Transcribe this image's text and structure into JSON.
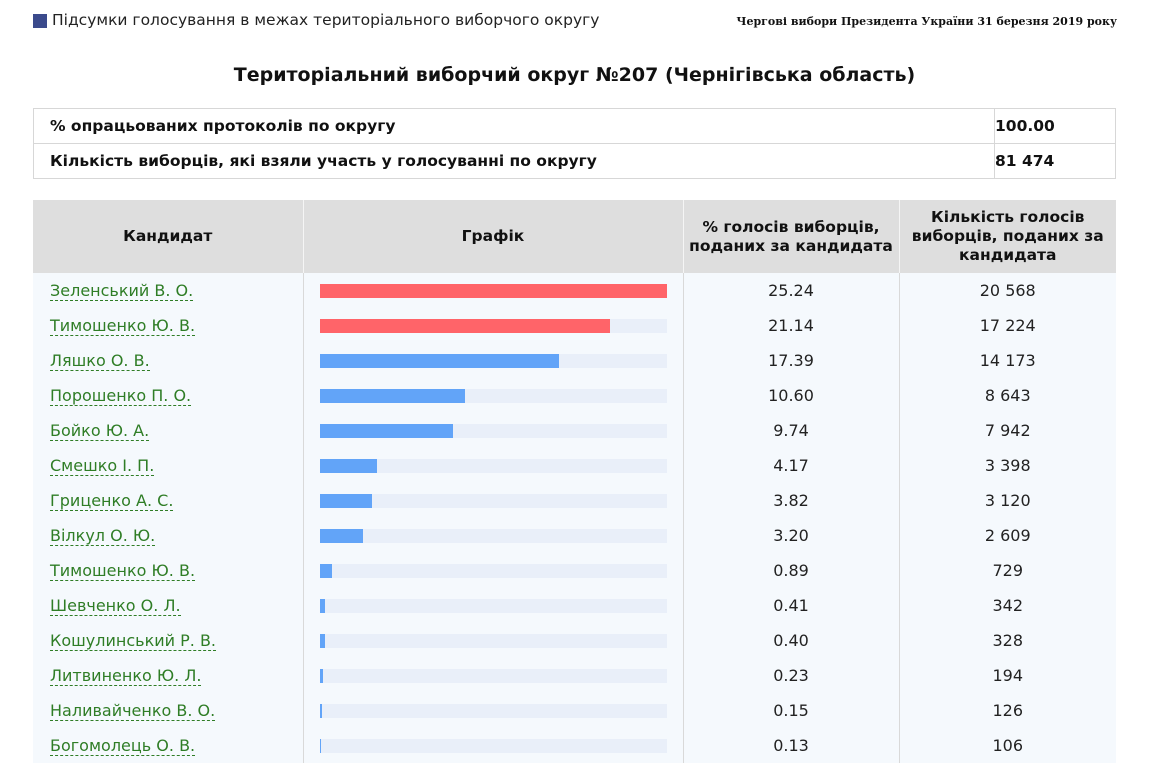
{
  "header": {
    "title": "Підсумки голосування в межах територіального виборчого округу",
    "election": "Чергові вибори Президента України 31 березня 2019 року"
  },
  "district_title": "Територіальний виборчий округ №207 (Чернігівська область)",
  "summary": [
    {
      "label": "% опрацьованих протоколів по округу",
      "value": "100.00"
    },
    {
      "label": "Кількість виборців, які взяли участь у голосуванні по округу",
      "value": "81 474"
    }
  ],
  "columns": {
    "candidate": "Кандидат",
    "chart": "Графік",
    "percent": "% голосів виборців, поданих за кандидата",
    "votes": "Кількість голосів виборців, поданих за кандидата"
  },
  "colors": {
    "leader": "#ff6469",
    "other": "#62a4f8",
    "track": "#e9eff9",
    "link": "#2f7d26"
  },
  "candidates": [
    {
      "name": "Зеленський В. О.",
      "percent": "25.24",
      "votes": "20 568",
      "bar": 1.0,
      "leader": true
    },
    {
      "name": "Тимошенко Ю. В.",
      "percent": "21.14",
      "votes": "17 224",
      "bar": 0.8376,
      "leader": true
    },
    {
      "name": "Ляшко О. В.",
      "percent": "17.39",
      "votes": "14 173",
      "bar": 0.689,
      "leader": false
    },
    {
      "name": "Порошенко П. О.",
      "percent": "10.60",
      "votes": "8 643",
      "bar": 0.42,
      "leader": false
    },
    {
      "name": "Бойко Ю. А.",
      "percent": "9.74",
      "votes": "7 942",
      "bar": 0.3859,
      "leader": false
    },
    {
      "name": "Смешко І. П.",
      "percent": "4.17",
      "votes": "3 398",
      "bar": 0.1652,
      "leader": false
    },
    {
      "name": "Гриценко А. С.",
      "percent": "3.82",
      "votes": "3 120",
      "bar": 0.1513,
      "leader": false
    },
    {
      "name": "Вілкул О. Ю.",
      "percent": "3.20",
      "votes": "2 609",
      "bar": 0.1268,
      "leader": false
    },
    {
      "name": "Тимошенко Ю. В.",
      "percent": "0.89",
      "votes": "729",
      "bar": 0.0353,
      "leader": false
    },
    {
      "name": "Шевченко О. Л.",
      "percent": "0.41",
      "votes": "342",
      "bar": 0.0162,
      "leader": false
    },
    {
      "name": "Кошулинський Р. В.",
      "percent": "0.40",
      "votes": "328",
      "bar": 0.0158,
      "leader": false
    },
    {
      "name": "Литвиненко Ю. Л.",
      "percent": "0.23",
      "votes": "194",
      "bar": 0.0091,
      "leader": false
    },
    {
      "name": "Наливайченко В. О.",
      "percent": "0.15",
      "votes": "126",
      "bar": 0.0059,
      "leader": false
    },
    {
      "name": "Богомолець О. В.",
      "percent": "0.13",
      "votes": "106",
      "bar": 0.0052,
      "leader": false
    }
  ]
}
